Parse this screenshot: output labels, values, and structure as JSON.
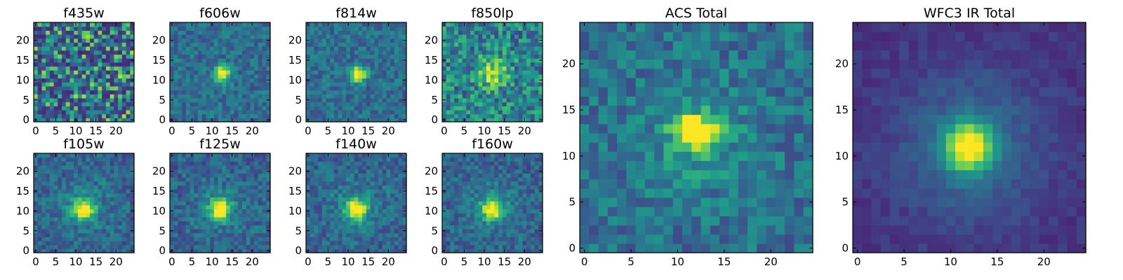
{
  "chart_data": [
    {
      "type": "heatmap",
      "title": "f435w",
      "pattern": "noise",
      "xticks": [
        0,
        5,
        10,
        15,
        20
      ],
      "yticks": [
        0,
        5,
        10,
        15,
        20
      ],
      "xlim": [
        -0.5,
        24.5
      ],
      "ylim": [
        -0.5,
        24.5
      ],
      "grid": false,
      "colormap": "viridis"
    },
    {
      "type": "heatmap",
      "title": "f606w",
      "pattern": "compact-peak",
      "xticks": [
        0,
        5,
        10,
        15,
        20
      ],
      "yticks": [
        0,
        5,
        10,
        15,
        20
      ],
      "xlim": [
        -0.5,
        24.5
      ],
      "ylim": [
        -0.5,
        24.5
      ],
      "grid": false,
      "colormap": "viridis"
    },
    {
      "type": "heatmap",
      "title": "f814w",
      "pattern": "compact-peak",
      "xticks": [
        0,
        5,
        10,
        15,
        20
      ],
      "yticks": [
        0,
        5,
        10,
        15,
        20
      ],
      "xlim": [
        -0.5,
        24.5
      ],
      "ylim": [
        -0.5,
        24.5
      ],
      "grid": false,
      "colormap": "viridis"
    },
    {
      "type": "heatmap",
      "title": "f850lp",
      "pattern": "noisy-peak",
      "xticks": [
        0,
        5,
        10,
        15,
        20
      ],
      "yticks": [
        0,
        5,
        10,
        15,
        20
      ],
      "xlim": [
        -0.5,
        24.5
      ],
      "ylim": [
        -0.5,
        24.5
      ],
      "grid": false,
      "colormap": "viridis"
    },
    {
      "type": "heatmap",
      "title": "f105w",
      "pattern": "peak",
      "xticks": [
        0,
        5,
        10,
        15,
        20
      ],
      "yticks": [
        0,
        5,
        10,
        15,
        20
      ],
      "xlim": [
        -0.5,
        24.5
      ],
      "ylim": [
        -0.5,
        24.5
      ],
      "grid": false,
      "colormap": "viridis"
    },
    {
      "type": "heatmap",
      "title": "f125w",
      "pattern": "peak",
      "xticks": [
        0,
        5,
        10,
        15,
        20
      ],
      "yticks": [
        0,
        5,
        10,
        15,
        20
      ],
      "xlim": [
        -0.5,
        24.5
      ],
      "ylim": [
        -0.5,
        24.5
      ],
      "grid": false,
      "colormap": "viridis"
    },
    {
      "type": "heatmap",
      "title": "f140w",
      "pattern": "peak",
      "xticks": [
        0,
        5,
        10,
        15,
        20
      ],
      "yticks": [
        0,
        5,
        10,
        15,
        20
      ],
      "xlim": [
        -0.5,
        24.5
      ],
      "ylim": [
        -0.5,
        24.5
      ],
      "grid": false,
      "colormap": "viridis"
    },
    {
      "type": "heatmap",
      "title": "f160w",
      "pattern": "peak",
      "xticks": [
        0,
        5,
        10,
        15,
        20
      ],
      "yticks": [
        0,
        5,
        10,
        15,
        20
      ],
      "xlim": [
        -0.5,
        24.5
      ],
      "ylim": [
        -0.5,
        24.5
      ],
      "grid": false,
      "colormap": "viridis"
    },
    {
      "type": "heatmap",
      "title": "ACS Total",
      "pattern": "double-peak",
      "xticks": [
        0,
        5,
        10,
        15,
        20
      ],
      "yticks": [
        0,
        5,
        10,
        15,
        20
      ],
      "xlim": [
        -0.5,
        24.5
      ],
      "ylim": [
        -0.5,
        24.5
      ],
      "grid": false,
      "colormap": "viridis"
    },
    {
      "type": "heatmap",
      "title": "WFC3 IR Total",
      "pattern": "smooth-peak",
      "xticks": [
        0,
        5,
        10,
        15,
        20
      ],
      "yticks": [
        0,
        5,
        10,
        15,
        20
      ],
      "xlim": [
        -0.5,
        24.5
      ],
      "ylim": [
        -0.5,
        24.5
      ],
      "grid": false,
      "colormap": "viridis"
    }
  ]
}
